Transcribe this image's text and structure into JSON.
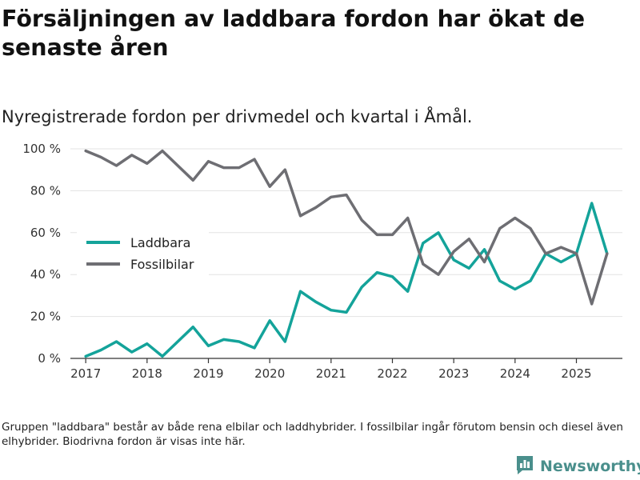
{
  "title": "Försäljningen av laddbara fordon har ökat de senaste åren",
  "subtitle": "Nyregistrerade fordon per drivmedel och kvartal i Åmål.",
  "footnote": "Gruppen \"laddbara\" består av både rena elbilar och laddhybrider. I fossilbilar ingår förutom bensin och diesel även elhybrider. Biodrivna fordon är visas inte här.",
  "brand": {
    "name": "Newsworthy",
    "icon": "bar-chart-logo-icon",
    "color": "#4a8f8c"
  },
  "chart_data": {
    "type": "line",
    "title": "Försäljningen av laddbara fordon har ökat de senaste åren",
    "xlabel": "",
    "ylabel": "",
    "xlim": [
      2016.75,
      2025.75
    ],
    "ylim": [
      0,
      100
    ],
    "x_ticks": [
      2017,
      2018,
      2019,
      2020,
      2021,
      2022,
      2023,
      2024,
      2025
    ],
    "x_tick_labels": [
      "2017",
      "2018",
      "2019",
      "2020",
      "2021",
      "2022",
      "2023",
      "2024",
      "2025"
    ],
    "y_ticks": [
      0,
      20,
      40,
      60,
      80,
      100
    ],
    "y_tick_labels": [
      "0 %",
      "20 %",
      "40 %",
      "60 %",
      "80 %",
      "100 %"
    ],
    "grid": true,
    "legend_position": "center-left",
    "x": [
      2017.0,
      2017.25,
      2017.5,
      2017.75,
      2018.0,
      2018.25,
      2018.5,
      2018.75,
      2019.0,
      2019.25,
      2019.5,
      2019.75,
      2020.0,
      2020.25,
      2020.5,
      2020.75,
      2021.0,
      2021.25,
      2021.5,
      2021.75,
      2022.0,
      2022.25,
      2022.5,
      2022.75,
      2023.0,
      2023.25,
      2023.5,
      2023.75,
      2024.0,
      2024.25,
      2024.5,
      2024.75,
      2025.0,
      2025.25,
      2025.5
    ],
    "series": [
      {
        "name": "Laddbara",
        "color": "#14a39a",
        "values": [
          1,
          4,
          8,
          3,
          7,
          1,
          8,
          15,
          6,
          9,
          8,
          5,
          18,
          8,
          32,
          27,
          23,
          22,
          34,
          41,
          39,
          32,
          55,
          60,
          47,
          43,
          52,
          37,
          33,
          37,
          50,
          46,
          50,
          74,
          50
        ]
      },
      {
        "name": "Fossilbilar",
        "color": "#6e6e73",
        "values": [
          99,
          96,
          92,
          97,
          93,
          99,
          92,
          85,
          94,
          91,
          91,
          95,
          82,
          90,
          68,
          72,
          77,
          78,
          66,
          59,
          59,
          67,
          45,
          40,
          51,
          57,
          46,
          62,
          67,
          62,
          50,
          53,
          50,
          26,
          50
        ]
      }
    ]
  }
}
